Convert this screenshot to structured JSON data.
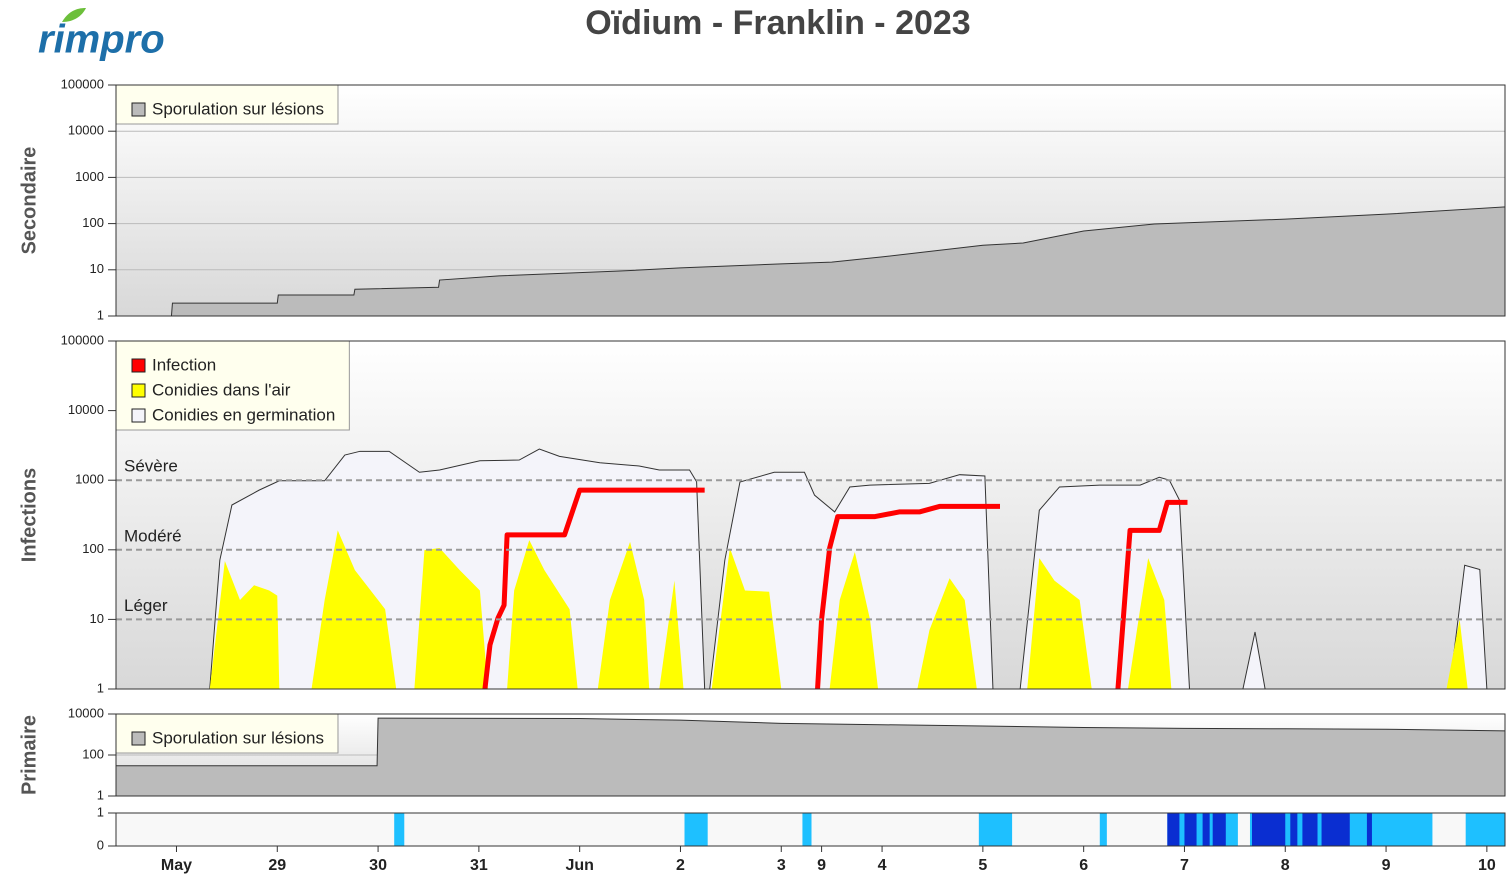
{
  "logo": "rimpro",
  "title": "Oïdium - Franklin - 2023",
  "chart_data": [
    {
      "type": "area",
      "ylabel": "Secondaire",
      "log_scale": true,
      "grid": true,
      "xlim": [
        -0.6,
        13.18
      ],
      "ylim": [
        1,
        100000
      ],
      "yticks": [
        1,
        10,
        100,
        1000,
        10000,
        100000
      ],
      "series": [
        {
          "name": "Sporulation sur lésions",
          "color": "#bbbbbb",
          "x": [
            -0.05,
            -0.04,
            1.0,
            1.01,
            1.76,
            1.77,
            2.6,
            2.61,
            3.2,
            4.4,
            5.0,
            6.0,
            6.5,
            7.0,
            8.0,
            8.4,
            9.0,
            9.7,
            11.0,
            12.0,
            13.18
          ],
          "values": [
            1,
            1.9,
            1.9,
            2.85,
            2.85,
            3.8,
            4.2,
            6,
            7.4,
            9.4,
            11,
            13.4,
            14.7,
            19,
            34,
            38,
            69,
            98,
            125,
            160,
            230
          ]
        }
      ]
    },
    {
      "type": "area",
      "ylabel": "Infections",
      "log_scale": true,
      "grid": false,
      "xlim": [
        -0.6,
        13.18
      ],
      "ylim": [
        1,
        100000
      ],
      "yticks": [
        1,
        10,
        100,
        1000,
        10000,
        100000
      ],
      "thresholds": [
        {
          "value": 1000,
          "label": "Sévère"
        },
        {
          "value": 100,
          "label": "Modéré"
        },
        {
          "value": 10,
          "label": "Léger"
        }
      ],
      "series": [
        {
          "name": "Infection",
          "color": "#ff0000",
          "type": "line",
          "x": [
            3.06,
            3.11,
            3.19,
            3.25,
            3.28,
            3.85,
            4.0,
            5.24,
            null,
            6.36,
            6.4,
            6.48,
            6.56,
            6.93,
            7.17,
            7.37,
            7.57,
            8.17,
            null,
            9.34,
            9.46,
            9.75,
            9.83,
            10.03
          ],
          "values": [
            1,
            4.3,
            10.5,
            16,
            164,
            164,
            720,
            720,
            null,
            1,
            10,
            106,
            300,
            300,
            350,
            350,
            420,
            420,
            null,
            1,
            190,
            190,
            480,
            480
          ]
        },
        {
          "name": "Conidies dans l'air",
          "color": "#ffff00",
          "x": [
            0.33,
            0.48,
            0.63,
            0.77,
            0.92,
            1.0,
            1.02,
            null,
            1.34,
            1.47,
            1.6,
            1.77,
            2.07,
            2.18,
            null,
            2.36,
            2.46,
            2.61,
            2.81,
            3.01,
            3.09,
            null,
            3.28,
            3.35,
            3.5,
            3.65,
            3.9,
            3.98,
            null,
            4.18,
            4.3,
            4.5,
            4.64,
            4.69,
            null,
            4.79,
            4.94,
            5.03,
            null,
            5.31,
            5.49,
            5.64,
            5.88,
            6.0,
            null,
            6.48,
            6.58,
            6.73,
            6.88,
            6.96,
            null,
            7.35,
            7.47,
            7.67,
            7.82,
            7.94,
            null,
            8.44,
            8.56,
            8.71,
            8.96,
            9.08,
            null,
            9.44,
            9.56,
            9.64,
            9.8,
            9.87,
            null,
            12.6,
            12.73,
            12.81
          ],
          "values": [
            1,
            69,
            19,
            31,
            26,
            22,
            1,
            null,
            1,
            19,
            190,
            51,
            14,
            1,
            null,
            1,
            99,
            106,
            51,
            26,
            1,
            null,
            1,
            26,
            138,
            51,
            14,
            1,
            null,
            1,
            19,
            130,
            19,
            1,
            null,
            1,
            36,
            1,
            null,
            1,
            106,
            26,
            25,
            1,
            null,
            1,
            19,
            93,
            10,
            1,
            null,
            1,
            7,
            39,
            19,
            1,
            null,
            1,
            76,
            36,
            19,
            1,
            null,
            1,
            14,
            76,
            19,
            1,
            null,
            1,
            10,
            1
          ]
        },
        {
          "name": "Conidies en germination",
          "color": "#f4f4fa",
          "x": [
            0.33,
            0.43,
            0.55,
            0.82,
            1.02,
            1.47,
            1.67,
            1.82,
            2.11,
            2.41,
            2.61,
            3.01,
            3.4,
            3.6,
            3.8,
            4.2,
            4.59,
            4.79,
            5.09,
            5.16,
            5.24,
            null,
            5.29,
            5.44,
            5.59,
            5.93,
            6.23,
            6.33,
            6.53,
            6.68,
            6.88,
            7.47,
            7.77,
            8.02,
            8.1,
            null,
            8.37,
            8.56,
            8.76,
            9.16,
            9.56,
            9.75,
            9.85,
            9.95,
            10.05,
            null,
            10.58,
            10.7,
            10.8,
            null,
            12.63,
            12.78,
            12.93,
            13.0
          ],
          "values": [
            1,
            71,
            440,
            720,
            980,
            980,
            2300,
            2600,
            2600,
            1300,
            1400,
            1900,
            1950,
            2800,
            2200,
            1780,
            1600,
            1400,
            1400,
            950,
            1,
            null,
            1,
            71,
            940,
            1300,
            1300,
            610,
            350,
            800,
            850,
            900,
            1200,
            1150,
            1,
            null,
            1,
            370,
            800,
            850,
            850,
            1100,
            1000,
            520,
            1,
            null,
            1,
            6.6,
            1,
            null,
            1,
            60,
            52,
            1
          ]
        }
      ]
    },
    {
      "type": "area",
      "ylabel": "Primaire",
      "log_scale": true,
      "grid": true,
      "xlim": [
        -0.6,
        13.18
      ],
      "ylim": [
        1,
        10000
      ],
      "yticks": [
        1,
        100,
        10000
      ],
      "series": [
        {
          "name": "Sporulation sur lésions",
          "color": "#bbbbbb",
          "x": [
            -0.6,
            1.99,
            2.0,
            4.0,
            5.0,
            6.0,
            7.0,
            8.0,
            9.0,
            10.0,
            11.0,
            12.0,
            13.18
          ],
          "values": [
            30,
            30,
            6300,
            6000,
            5000,
            3500,
            3000,
            2600,
            2200,
            2000,
            1900,
            1800,
            1500
          ]
        }
      ]
    },
    {
      "type": "bar",
      "log_scale": false,
      "grid": true,
      "xlim": [
        -0.6,
        13.18
      ],
      "ylim": [
        0,
        1
      ],
      "yticks": [
        0,
        1
      ],
      "xticks": [
        {
          "value": 0,
          "label": "May"
        },
        {
          "value": 1,
          "label": "29"
        },
        {
          "value": 2,
          "label": "30"
        },
        {
          "value": 3,
          "label": "31"
        },
        {
          "value": 4,
          "label": "Jun"
        },
        {
          "value": 5,
          "label": "2"
        },
        {
          "value": 6,
          "label": "3"
        },
        {
          "value": 6.4,
          "label": "9"
        },
        {
          "value": 7,
          "label": "4"
        },
        {
          "value": 8,
          "label": "5"
        },
        {
          "value": 9,
          "label": "6"
        },
        {
          "value": 10,
          "label": "7"
        },
        {
          "value": 11,
          "label": "8"
        },
        {
          "value": 12,
          "label": "9"
        },
        {
          "value": 13,
          "label": "10"
        }
      ],
      "series": [
        {
          "color": "#1ec0ff",
          "x0": [
            2.16,
            5.04,
            6.21,
            7.96,
            9.16,
            9.83,
            10.65,
            12.79
          ],
          "x1": [
            2.26,
            5.27,
            6.3,
            8.29,
            9.23,
            10.53,
            12.46,
            13.18
          ],
          "values": [
            1,
            1,
            1,
            1,
            1,
            1,
            1,
            1
          ]
        },
        {
          "color": "#0a2ed1",
          "x0": [
            9.83,
            10.0,
            10.18,
            10.28,
            10.67,
            11.05,
            11.17,
            11.36,
            11.81
          ],
          "x1": [
            9.95,
            10.12,
            10.25,
            10.41,
            11.0,
            11.12,
            11.32,
            11.64,
            11.86
          ],
          "values": [
            1,
            1,
            1,
            1,
            1,
            1,
            1,
            1,
            1
          ]
        }
      ]
    }
  ]
}
